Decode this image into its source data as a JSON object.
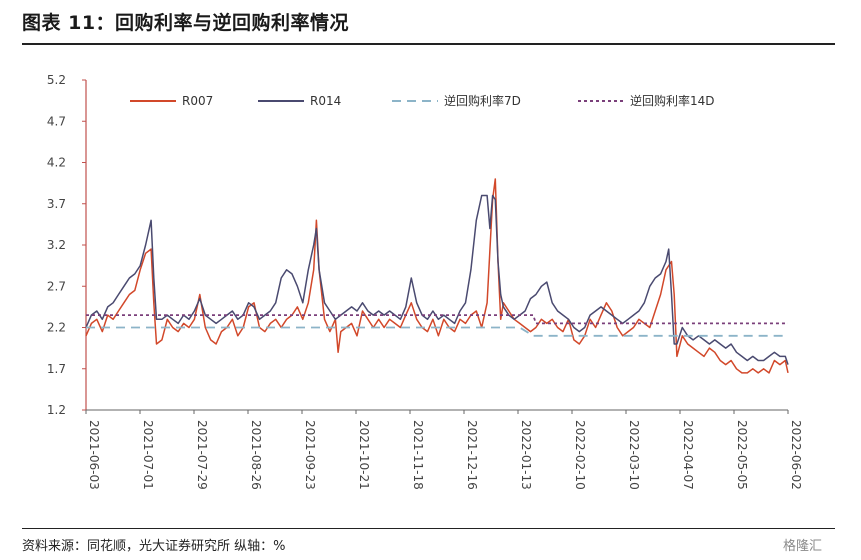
{
  "title": "图表 11：回购利率与逆回购利率情况",
  "source": "资料来源：同花顺，光大证券研究所  纵轴：%",
  "watermark": "格隆汇",
  "chart_data": {
    "type": "line",
    "ylim": [
      1.2,
      5.2
    ],
    "y_ticks": [
      "1.2",
      "1.7",
      "2.2",
      "2.7",
      "3.2",
      "3.7",
      "4.2",
      "4.7",
      "5.2"
    ],
    "x_ticks": [
      "2021-06-03",
      "2021-07-01",
      "2021-07-29",
      "2021-08-26",
      "2021-09-23",
      "2021-10-21",
      "2021-11-18",
      "2021-12-16",
      "2022-01-13",
      "2022-02-10",
      "2022-03-10",
      "2022-04-07",
      "2022-05-05",
      "2022-06-02"
    ],
    "legend_position": "top",
    "series": [
      {
        "name": "R007",
        "color": "#d2482a",
        "dash": "",
        "points": [
          [
            0,
            2.1
          ],
          [
            2,
            2.25
          ],
          [
            4,
            2.3
          ],
          [
            6,
            2.15
          ],
          [
            8,
            2.35
          ],
          [
            10,
            2.3
          ],
          [
            12,
            2.4
          ],
          [
            14,
            2.5
          ],
          [
            16,
            2.6
          ],
          [
            18,
            2.65
          ],
          [
            20,
            2.9
          ],
          [
            22,
            3.1
          ],
          [
            24,
            3.15
          ],
          [
            25,
            2.5
          ],
          [
            26,
            2.0
          ],
          [
            28,
            2.05
          ],
          [
            30,
            2.3
          ],
          [
            32,
            2.2
          ],
          [
            34,
            2.15
          ],
          [
            36,
            2.25
          ],
          [
            38,
            2.2
          ],
          [
            40,
            2.3
          ],
          [
            42,
            2.6
          ],
          [
            44,
            2.2
          ],
          [
            46,
            2.05
          ],
          [
            48,
            2.0
          ],
          [
            50,
            2.15
          ],
          [
            52,
            2.2
          ],
          [
            54,
            2.3
          ],
          [
            56,
            2.1
          ],
          [
            58,
            2.2
          ],
          [
            60,
            2.45
          ],
          [
            62,
            2.5
          ],
          [
            64,
            2.2
          ],
          [
            66,
            2.15
          ],
          [
            68,
            2.25
          ],
          [
            70,
            2.3
          ],
          [
            72,
            2.2
          ],
          [
            74,
            2.3
          ],
          [
            76,
            2.35
          ],
          [
            78,
            2.45
          ],
          [
            80,
            2.3
          ],
          [
            82,
            2.5
          ],
          [
            84,
            2.9
          ],
          [
            85,
            3.5
          ],
          [
            86,
            2.9
          ],
          [
            88,
            2.3
          ],
          [
            90,
            2.15
          ],
          [
            92,
            2.3
          ],
          [
            93,
            1.9
          ],
          [
            94,
            2.15
          ],
          [
            96,
            2.2
          ],
          [
            98,
            2.25
          ],
          [
            100,
            2.1
          ],
          [
            102,
            2.4
          ],
          [
            104,
            2.3
          ],
          [
            106,
            2.2
          ],
          [
            108,
            2.3
          ],
          [
            110,
            2.2
          ],
          [
            112,
            2.3
          ],
          [
            114,
            2.25
          ],
          [
            116,
            2.2
          ],
          [
            118,
            2.35
          ],
          [
            120,
            2.5
          ],
          [
            122,
            2.3
          ],
          [
            124,
            2.2
          ],
          [
            126,
            2.15
          ],
          [
            128,
            2.3
          ],
          [
            130,
            2.1
          ],
          [
            132,
            2.3
          ],
          [
            134,
            2.2
          ],
          [
            136,
            2.15
          ],
          [
            138,
            2.3
          ],
          [
            140,
            2.25
          ],
          [
            142,
            2.35
          ],
          [
            144,
            2.4
          ],
          [
            146,
            2.2
          ],
          [
            148,
            2.5
          ],
          [
            150,
            3.75
          ],
          [
            151,
            4.0
          ],
          [
            152,
            3.0
          ],
          [
            153,
            2.3
          ],
          [
            154,
            2.5
          ],
          [
            156,
            2.4
          ],
          [
            158,
            2.3
          ],
          [
            160,
            2.25
          ],
          [
            162,
            2.2
          ],
          [
            164,
            2.15
          ],
          [
            166,
            2.2
          ],
          [
            168,
            2.3
          ],
          [
            170,
            2.25
          ],
          [
            172,
            2.3
          ],
          [
            174,
            2.2
          ],
          [
            176,
            2.15
          ],
          [
            178,
            2.3
          ],
          [
            180,
            2.05
          ],
          [
            182,
            2.0
          ],
          [
            184,
            2.1
          ],
          [
            186,
            2.3
          ],
          [
            188,
            2.2
          ],
          [
            190,
            2.35
          ],
          [
            192,
            2.5
          ],
          [
            194,
            2.4
          ],
          [
            196,
            2.2
          ],
          [
            198,
            2.1
          ],
          [
            200,
            2.15
          ],
          [
            202,
            2.2
          ],
          [
            204,
            2.3
          ],
          [
            206,
            2.25
          ],
          [
            208,
            2.2
          ],
          [
            210,
            2.4
          ],
          [
            212,
            2.6
          ],
          [
            214,
            2.9
          ],
          [
            216,
            3.0
          ],
          [
            217,
            2.6
          ],
          [
            218,
            1.85
          ],
          [
            220,
            2.1
          ],
          [
            222,
            2.0
          ],
          [
            224,
            1.95
          ],
          [
            226,
            1.9
          ],
          [
            228,
            1.85
          ],
          [
            230,
            1.95
          ],
          [
            232,
            1.9
          ],
          [
            234,
            1.8
          ],
          [
            236,
            1.75
          ],
          [
            238,
            1.8
          ],
          [
            240,
            1.7
          ],
          [
            242,
            1.65
          ],
          [
            244,
            1.65
          ],
          [
            246,
            1.7
          ],
          [
            248,
            1.65
          ],
          [
            250,
            1.7
          ],
          [
            252,
            1.65
          ],
          [
            254,
            1.8
          ],
          [
            256,
            1.75
          ],
          [
            258,
            1.8
          ],
          [
            259,
            1.65
          ]
        ]
      },
      {
        "name": "R014",
        "color": "#4a4a70",
        "dash": "",
        "points": [
          [
            0,
            2.2
          ],
          [
            2,
            2.35
          ],
          [
            4,
            2.4
          ],
          [
            6,
            2.3
          ],
          [
            8,
            2.45
          ],
          [
            10,
            2.5
          ],
          [
            12,
            2.6
          ],
          [
            14,
            2.7
          ],
          [
            16,
            2.8
          ],
          [
            18,
            2.85
          ],
          [
            20,
            2.95
          ],
          [
            22,
            3.2
          ],
          [
            24,
            3.5
          ],
          [
            25,
            2.8
          ],
          [
            26,
            2.3
          ],
          [
            28,
            2.3
          ],
          [
            30,
            2.35
          ],
          [
            32,
            2.3
          ],
          [
            34,
            2.25
          ],
          [
            36,
            2.35
          ],
          [
            38,
            2.3
          ],
          [
            40,
            2.4
          ],
          [
            42,
            2.55
          ],
          [
            44,
            2.35
          ],
          [
            46,
            2.3
          ],
          [
            48,
            2.25
          ],
          [
            50,
            2.3
          ],
          [
            52,
            2.35
          ],
          [
            54,
            2.4
          ],
          [
            56,
            2.3
          ],
          [
            58,
            2.35
          ],
          [
            60,
            2.5
          ],
          [
            62,
            2.45
          ],
          [
            64,
            2.3
          ],
          [
            66,
            2.35
          ],
          [
            68,
            2.4
          ],
          [
            70,
            2.5
          ],
          [
            72,
            2.8
          ],
          [
            74,
            2.9
          ],
          [
            76,
            2.85
          ],
          [
            78,
            2.7
          ],
          [
            80,
            2.5
          ],
          [
            82,
            2.9
          ],
          [
            84,
            3.2
          ],
          [
            85,
            3.4
          ],
          [
            86,
            2.9
          ],
          [
            88,
            2.5
          ],
          [
            90,
            2.4
          ],
          [
            92,
            2.3
          ],
          [
            94,
            2.35
          ],
          [
            96,
            2.4
          ],
          [
            98,
            2.45
          ],
          [
            100,
            2.4
          ],
          [
            102,
            2.5
          ],
          [
            104,
            2.4
          ],
          [
            106,
            2.35
          ],
          [
            108,
            2.4
          ],
          [
            110,
            2.35
          ],
          [
            112,
            2.4
          ],
          [
            114,
            2.35
          ],
          [
            116,
            2.3
          ],
          [
            118,
            2.45
          ],
          [
            120,
            2.8
          ],
          [
            122,
            2.5
          ],
          [
            124,
            2.35
          ],
          [
            126,
            2.3
          ],
          [
            128,
            2.4
          ],
          [
            130,
            2.3
          ],
          [
            132,
            2.35
          ],
          [
            134,
            2.3
          ],
          [
            136,
            2.25
          ],
          [
            138,
            2.4
          ],
          [
            140,
            2.5
          ],
          [
            142,
            2.9
          ],
          [
            144,
            3.5
          ],
          [
            146,
            3.8
          ],
          [
            148,
            3.8
          ],
          [
            149,
            3.4
          ],
          [
            150,
            3.8
          ],
          [
            151,
            3.75
          ],
          [
            152,
            3.0
          ],
          [
            153,
            2.6
          ],
          [
            154,
            2.45
          ],
          [
            156,
            2.35
          ],
          [
            158,
            2.3
          ],
          [
            160,
            2.35
          ],
          [
            162,
            2.4
          ],
          [
            164,
            2.55
          ],
          [
            166,
            2.6
          ],
          [
            168,
            2.7
          ],
          [
            170,
            2.75
          ],
          [
            172,
            2.5
          ],
          [
            174,
            2.4
          ],
          [
            176,
            2.35
          ],
          [
            178,
            2.3
          ],
          [
            180,
            2.2
          ],
          [
            182,
            2.15
          ],
          [
            184,
            2.2
          ],
          [
            186,
            2.35
          ],
          [
            188,
            2.4
          ],
          [
            190,
            2.45
          ],
          [
            192,
            2.4
          ],
          [
            194,
            2.35
          ],
          [
            196,
            2.3
          ],
          [
            198,
            2.25
          ],
          [
            200,
            2.3
          ],
          [
            202,
            2.35
          ],
          [
            204,
            2.4
          ],
          [
            206,
            2.5
          ],
          [
            208,
            2.7
          ],
          [
            210,
            2.8
          ],
          [
            212,
            2.85
          ],
          [
            214,
            3.0
          ],
          [
            215,
            3.15
          ],
          [
            216,
            2.6
          ],
          [
            217,
            2.0
          ],
          [
            218,
            2.0
          ],
          [
            220,
            2.2
          ],
          [
            222,
            2.1
          ],
          [
            224,
            2.05
          ],
          [
            226,
            2.1
          ],
          [
            228,
            2.05
          ],
          [
            230,
            2.0
          ],
          [
            232,
            2.05
          ],
          [
            234,
            2.0
          ],
          [
            236,
            1.95
          ],
          [
            238,
            2.0
          ],
          [
            240,
            1.9
          ],
          [
            242,
            1.85
          ],
          [
            244,
            1.8
          ],
          [
            246,
            1.85
          ],
          [
            248,
            1.8
          ],
          [
            250,
            1.8
          ],
          [
            252,
            1.85
          ],
          [
            254,
            1.9
          ],
          [
            256,
            1.85
          ],
          [
            258,
            1.85
          ],
          [
            259,
            1.75
          ]
        ]
      },
      {
        "name": "逆回购利率7D",
        "color": "#8cb4c8",
        "dash": "9,6",
        "points": [
          [
            0,
            2.2
          ],
          [
            160,
            2.2
          ],
          [
            165,
            2.1
          ],
          [
            259,
            2.1
          ]
        ]
      },
      {
        "name": "逆回购利率14D",
        "color": "#7a3f7a",
        "dash": "3,3",
        "points": [
          [
            0,
            2.35
          ],
          [
            165,
            2.35
          ],
          [
            166,
            2.25
          ],
          [
            259,
            2.25
          ]
        ]
      }
    ]
  }
}
